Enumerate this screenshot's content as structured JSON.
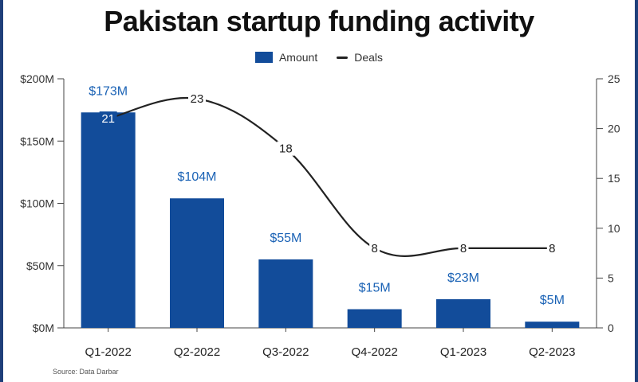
{
  "title": "Pakistan startup funding activity",
  "legend": {
    "amount": "Amount",
    "deals": "Deals"
  },
  "source": "Source: Data Darbar",
  "colors": {
    "bar": "#124c9a",
    "bar_label": "#1a62b5",
    "line": "#222222",
    "frame": "#1f3f7a"
  },
  "chart_data": {
    "type": "bar",
    "categories": [
      "Q1-2022",
      "Q2-2022",
      "Q3-2022",
      "Q4-2022",
      "Q1-2023",
      "Q2-2023"
    ],
    "series": [
      {
        "name": "Amount",
        "type": "bar",
        "axis": "left",
        "values": [
          173,
          104,
          55,
          15,
          23,
          5
        ],
        "labels": [
          "$173M",
          "$104M",
          "$55M",
          "$15M",
          "$23M",
          "$5M"
        ]
      },
      {
        "name": "Deals",
        "type": "line",
        "axis": "right",
        "values": [
          21,
          23,
          18,
          8,
          8,
          8
        ],
        "labels": [
          "21",
          "23",
          "18",
          "8",
          "8",
          "8"
        ]
      }
    ],
    "y_left": {
      "min": 0,
      "max": 200,
      "ticks": [
        0,
        50,
        100,
        150,
        200
      ],
      "tick_labels": [
        "$0M",
        "$50M",
        "$100M",
        "$150M",
        "$200M"
      ]
    },
    "y_right": {
      "min": 0,
      "max": 25,
      "ticks": [
        0,
        5,
        10,
        15,
        20,
        25
      ],
      "tick_labels": [
        "0",
        "5",
        "10",
        "15",
        "20",
        "25"
      ]
    },
    "grid": false,
    "legend_position": "top-center"
  }
}
